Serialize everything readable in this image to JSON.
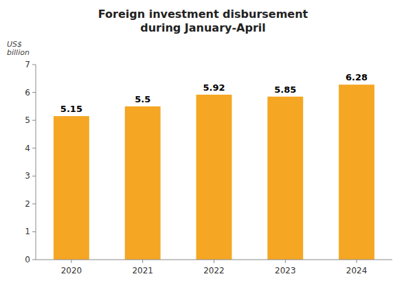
{
  "chart_data": {
    "type": "bar",
    "title": "Foreign investment disbursement\nduring January-April",
    "ylabel": "US$\nbillion",
    "categories": [
      "2020",
      "2021",
      "2022",
      "2023",
      "2024"
    ],
    "values": [
      5.15,
      5.5,
      5.92,
      5.85,
      6.28
    ],
    "color": "#F5A623",
    "ylim": [
      0,
      7
    ],
    "yticks": [
      0,
      1,
      2,
      3,
      4,
      5,
      6,
      7
    ],
    "grid": false,
    "data_labels": true
  }
}
